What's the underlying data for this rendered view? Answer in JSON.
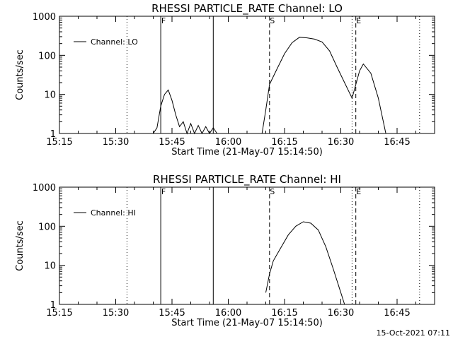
{
  "stamp": "15-Oct-2021 07:11",
  "chart_data": [
    {
      "type": "line",
      "title": "RHESSI PARTICLE_RATE Channel: LO",
      "xlabel": "Start Time (21-May-07 15:14:50)",
      "ylabel": "Counts/sec",
      "y_scale": "log",
      "xlim": [
        "15:15",
        "16:55"
      ],
      "ylim": [
        1,
        1000
      ],
      "x_tick_labels": [
        "15:15",
        "15:30",
        "15:45",
        "16:00",
        "16:15",
        "16:30",
        "16:45"
      ],
      "y_tick_labels": [
        "1",
        "10",
        "100",
        "1000"
      ],
      "legend": {
        "label": "Channel: LO",
        "placement": "top-left"
      },
      "markers": [
        {
          "time": "15:33",
          "style": "dotted",
          "label": ""
        },
        {
          "time": "15:42",
          "style": "solid",
          "label": "F"
        },
        {
          "time": "15:56",
          "style": "solid",
          "label": ""
        },
        {
          "time": "16:11",
          "style": "dashed",
          "label": "S"
        },
        {
          "time": "16:33",
          "style": "dotted",
          "label": ""
        },
        {
          "time": "16:34",
          "style": "dashed",
          "label": "E"
        },
        {
          "time": "16:51",
          "style": "dotted",
          "label": ""
        }
      ],
      "series": [
        {
          "name": "Channel: LO",
          "segments": [
            [
              [
                "15:40",
                1.0
              ],
              [
                "15:41",
                1.4
              ],
              [
                "15:42",
                5.0
              ],
              [
                "15:43",
                10.0
              ],
              [
                "15:44",
                13.0
              ],
              [
                "15:45",
                7.0
              ],
              [
                "15:46",
                3.0
              ],
              [
                "15:47",
                1.5
              ],
              [
                "15:48",
                2.0
              ],
              [
                "15:49",
                1.0
              ],
              [
                "15:50",
                1.8
              ],
              [
                "15:51",
                1.0
              ],
              [
                "15:52",
                1.6
              ],
              [
                "15:53",
                1.0
              ],
              [
                "15:54",
                1.5
              ],
              [
                "15:55",
                1.0
              ],
              [
                "15:56",
                1.4
              ],
              [
                "15:57",
                1.0
              ]
            ],
            [
              [
                "16:09",
                1.0
              ],
              [
                "16:10",
                4.0
              ],
              [
                "16:11",
                18.0
              ],
              [
                "16:13",
                45.0
              ],
              [
                "16:15",
                110.0
              ],
              [
                "16:17",
                210.0
              ],
              [
                "16:19",
                290.0
              ],
              [
                "16:21",
                280.0
              ],
              [
                "16:23",
                260.0
              ],
              [
                "16:25",
                220.0
              ],
              [
                "16:27",
                130.0
              ],
              [
                "16:29",
                50.0
              ],
              [
                "16:31",
                20.0
              ],
              [
                "16:33",
                8.0
              ],
              [
                "16:35",
                40.0
              ],
              [
                "16:36",
                60.0
              ],
              [
                "16:38",
                35.0
              ],
              [
                "16:40",
                8.0
              ],
              [
                "16:42",
                1.0
              ]
            ]
          ]
        }
      ]
    },
    {
      "type": "line",
      "title": "RHESSI PARTICLE_RATE Channel: HI",
      "xlabel": "Start Time (21-May-07 15:14:50)",
      "ylabel": "Counts/sec",
      "y_scale": "log",
      "xlim": [
        "15:15",
        "16:55"
      ],
      "ylim": [
        1,
        1000
      ],
      "x_tick_labels": [
        "15:15",
        "15:30",
        "15:45",
        "16:00",
        "16:15",
        "16:30",
        "16:45"
      ],
      "y_tick_labels": [
        "1",
        "10",
        "100",
        "1000"
      ],
      "legend": {
        "label": "Channel: HI",
        "placement": "top-left"
      },
      "markers": [
        {
          "time": "15:33",
          "style": "dotted",
          "label": ""
        },
        {
          "time": "15:42",
          "style": "solid",
          "label": "F"
        },
        {
          "time": "15:56",
          "style": "solid",
          "label": ""
        },
        {
          "time": "16:11",
          "style": "dashed",
          "label": "S"
        },
        {
          "time": "16:33",
          "style": "dotted",
          "label": ""
        },
        {
          "time": "16:34",
          "style": "dashed",
          "label": "E"
        },
        {
          "time": "16:51",
          "style": "dotted",
          "label": ""
        }
      ],
      "series": [
        {
          "name": "Channel: HI",
          "segments": [
            [
              [
                "16:10",
                2.0
              ],
              [
                "16:11",
                6.0
              ],
              [
                "16:12",
                13.0
              ],
              [
                "16:14",
                28.0
              ],
              [
                "16:16",
                60.0
              ],
              [
                "16:18",
                100.0
              ],
              [
                "16:20",
                130.0
              ],
              [
                "16:22",
                120.0
              ],
              [
                "16:24",
                80.0
              ],
              [
                "16:26",
                30.0
              ],
              [
                "16:28",
                8.0
              ],
              [
                "16:30",
                2.0
              ],
              [
                "16:31",
                1.0
              ]
            ]
          ]
        }
      ]
    }
  ]
}
